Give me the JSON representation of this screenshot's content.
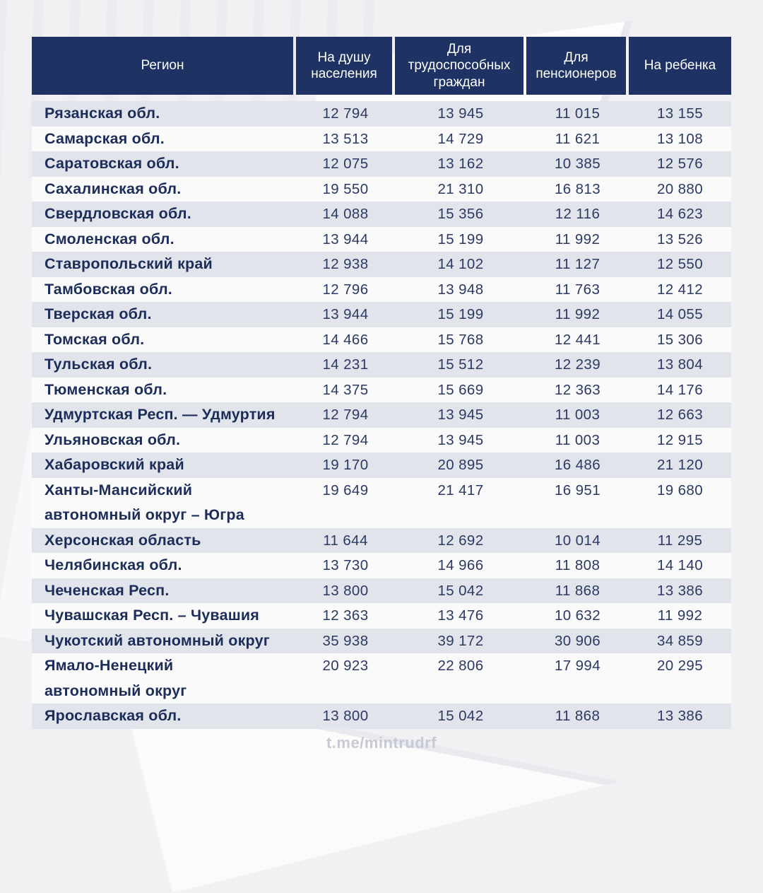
{
  "colors": {
    "page_bg": "#f1f1f4",
    "header_bg": "#1e3263",
    "header_text": "#ffffff",
    "row_shaded_bg": "#e2e4ec",
    "row_light_bg": "#fafafb",
    "region_text": "#1c2d5a",
    "number_text": "#2c3a63",
    "footer_text": "#c7c9d4"
  },
  "footer": {
    "handle": "t.me/mintrudrf"
  },
  "chart_data": {
    "type": "table",
    "columns": [
      "Регион",
      "На душу населения",
      "Для трудоспособных граждан",
      "Для пенсионеров",
      "На ребенка"
    ],
    "rows": [
      {
        "region": "Рязанская обл.",
        "values": [
          12794,
          13945,
          11015,
          13155
        ]
      },
      {
        "region": "Самарская обл.",
        "values": [
          13513,
          14729,
          11621,
          13108
        ]
      },
      {
        "region": "Саратовская обл.",
        "values": [
          12075,
          13162,
          10385,
          12576
        ]
      },
      {
        "region": "Сахалинская обл.",
        "values": [
          19550,
          21310,
          16813,
          20880
        ]
      },
      {
        "region": "Свердловская обл.",
        "values": [
          14088,
          15356,
          12116,
          14623
        ]
      },
      {
        "region": "Смоленская обл.",
        "values": [
          13944,
          15199,
          11992,
          13526
        ]
      },
      {
        "region": "Ставропольский край",
        "values": [
          12938,
          14102,
          11127,
          12550
        ]
      },
      {
        "region": "Тамбовская обл.",
        "values": [
          12796,
          13948,
          11763,
          12412
        ]
      },
      {
        "region": "Тверская обл.",
        "values": [
          13944,
          15199,
          11992,
          14055
        ]
      },
      {
        "region": "Томская обл.",
        "values": [
          14466,
          15768,
          12441,
          15306
        ]
      },
      {
        "region": "Тульская обл.",
        "values": [
          14231,
          15512,
          12239,
          13804
        ]
      },
      {
        "region": "Тюменская обл.",
        "values": [
          14375,
          15669,
          12363,
          14176
        ]
      },
      {
        "region": "Удмуртская Респ. — Удмуртия",
        "values": [
          12794,
          13945,
          11003,
          12663
        ]
      },
      {
        "region": "Ульяновская обл.",
        "values": [
          12794,
          13945,
          11003,
          12915
        ]
      },
      {
        "region": "Хабаровский край",
        "values": [
          19170,
          20895,
          16486,
          21120
        ]
      },
      {
        "region": "Ханты-Мансийский\nавтономный округ – Югра",
        "values": [
          19649,
          21417,
          16951,
          19680
        ]
      },
      {
        "region": "Херсонская область",
        "values": [
          11644,
          12692,
          10014,
          11295
        ]
      },
      {
        "region": "Челябинская обл.",
        "values": [
          13730,
          14966,
          11808,
          14140
        ]
      },
      {
        "region": "Чеченская Респ.",
        "values": [
          13800,
          15042,
          11868,
          13386
        ]
      },
      {
        "region": "Чувашская Респ. – Чувашия",
        "values": [
          12363,
          13476,
          10632,
          11992
        ]
      },
      {
        "region": "Чукотский автономный округ",
        "values": [
          35938,
          39172,
          30906,
          34859
        ]
      },
      {
        "region": "Ямало-Ненецкий\nавтономный округ",
        "values": [
          20923,
          22806,
          17994,
          20295
        ]
      },
      {
        "region": "Ярославская обл.",
        "values": [
          13800,
          15042,
          11868,
          13386
        ]
      }
    ]
  }
}
